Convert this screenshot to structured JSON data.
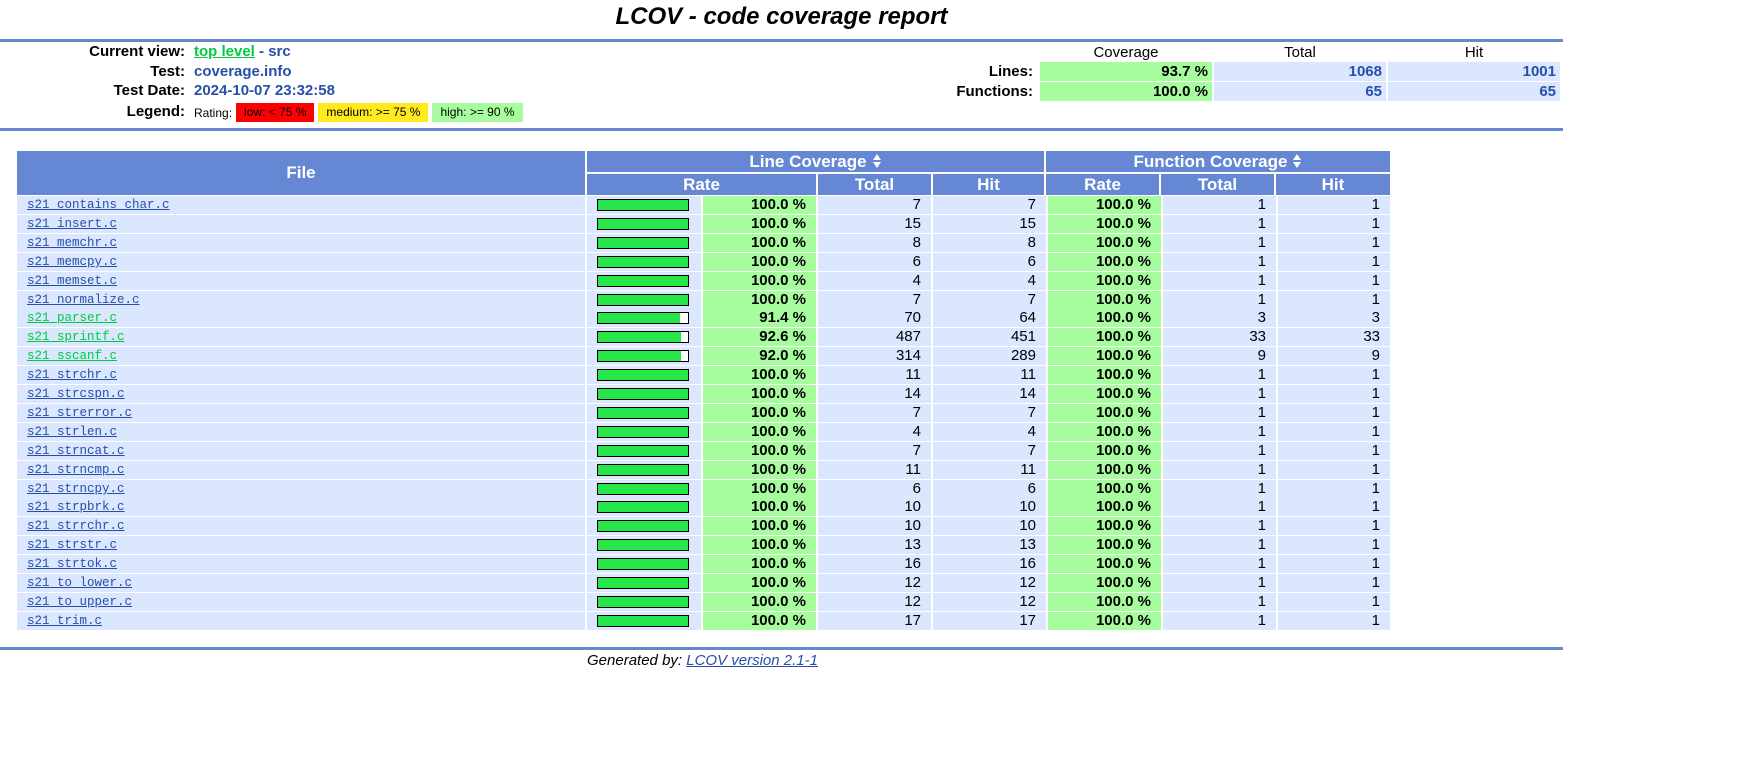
{
  "title": "LCOV - code coverage report",
  "header": {
    "current_view_label": "Current view:",
    "current_view_link": "top level",
    "current_view_sep": " - ",
    "current_view_dir": "src",
    "test_label": "Test:",
    "test_value": "coverage.info",
    "test_date_label": "Test Date:",
    "test_date_value": "2024-10-07 23:32:58",
    "legend_label": "Legend:",
    "legend_rating": "Rating:",
    "legend_low": "low: < 75 %",
    "legend_medium": "medium: >= 75 %",
    "legend_high": "high: >= 90 %"
  },
  "summary": {
    "col_coverage": "Coverage",
    "col_total": "Total",
    "col_hit": "Hit",
    "lines_label": "Lines:",
    "lines_coverage": "93.7 %",
    "lines_total": "1068",
    "lines_hit": "1001",
    "functions_label": "Functions:",
    "functions_coverage": "100.0 %",
    "functions_total": "65",
    "functions_hit": "65"
  },
  "table": {
    "col_file": "File",
    "col_line_coverage": "Line Coverage",
    "col_function_coverage": "Function Coverage",
    "col_rate": "Rate",
    "col_total": "Total",
    "col_hit": "Hit",
    "rows": [
      {
        "file": "s21_contains_char.c",
        "line_rate": "100.0 %",
        "line_pct": 100,
        "line_total": "7",
        "line_hit": "7",
        "func_rate": "100.0 %",
        "func_total": "1",
        "func_hit": "1",
        "highlight": false
      },
      {
        "file": "s21_insert.c",
        "line_rate": "100.0 %",
        "line_pct": 100,
        "line_total": "15",
        "line_hit": "15",
        "func_rate": "100.0 %",
        "func_total": "1",
        "func_hit": "1",
        "highlight": false
      },
      {
        "file": "s21_memchr.c",
        "line_rate": "100.0 %",
        "line_pct": 100,
        "line_total": "8",
        "line_hit": "8",
        "func_rate": "100.0 %",
        "func_total": "1",
        "func_hit": "1",
        "highlight": false
      },
      {
        "file": "s21_memcpy.c",
        "line_rate": "100.0 %",
        "line_pct": 100,
        "line_total": "6",
        "line_hit": "6",
        "func_rate": "100.0 %",
        "func_total": "1",
        "func_hit": "1",
        "highlight": false
      },
      {
        "file": "s21_memset.c",
        "line_rate": "100.0 %",
        "line_pct": 100,
        "line_total": "4",
        "line_hit": "4",
        "func_rate": "100.0 %",
        "func_total": "1",
        "func_hit": "1",
        "highlight": false
      },
      {
        "file": "s21_normalize.c",
        "line_rate": "100.0 %",
        "line_pct": 100,
        "line_total": "7",
        "line_hit": "7",
        "func_rate": "100.0 %",
        "func_total": "1",
        "func_hit": "1",
        "highlight": false
      },
      {
        "file": "s21_parser.c",
        "line_rate": "91.4 %",
        "line_pct": 91.4,
        "line_total": "70",
        "line_hit": "64",
        "func_rate": "100.0 %",
        "func_total": "3",
        "func_hit": "3",
        "highlight": true
      },
      {
        "file": "s21_sprintf.c",
        "line_rate": "92.6 %",
        "line_pct": 92.6,
        "line_total": "487",
        "line_hit": "451",
        "func_rate": "100.0 %",
        "func_total": "33",
        "func_hit": "33",
        "highlight": true
      },
      {
        "file": "s21_sscanf.c",
        "line_rate": "92.0 %",
        "line_pct": 92.0,
        "line_total": "314",
        "line_hit": "289",
        "func_rate": "100.0 %",
        "func_total": "9",
        "func_hit": "9",
        "highlight": true
      },
      {
        "file": "s21_strchr.c",
        "line_rate": "100.0 %",
        "line_pct": 100,
        "line_total": "11",
        "line_hit": "11",
        "func_rate": "100.0 %",
        "func_total": "1",
        "func_hit": "1",
        "highlight": false
      },
      {
        "file": "s21_strcspn.c",
        "line_rate": "100.0 %",
        "line_pct": 100,
        "line_total": "14",
        "line_hit": "14",
        "func_rate": "100.0 %",
        "func_total": "1",
        "func_hit": "1",
        "highlight": false
      },
      {
        "file": "s21_strerror.c",
        "line_rate": "100.0 %",
        "line_pct": 100,
        "line_total": "7",
        "line_hit": "7",
        "func_rate": "100.0 %",
        "func_total": "1",
        "func_hit": "1",
        "highlight": false
      },
      {
        "file": "s21_strlen.c",
        "line_rate": "100.0 %",
        "line_pct": 100,
        "line_total": "4",
        "line_hit": "4",
        "func_rate": "100.0 %",
        "func_total": "1",
        "func_hit": "1",
        "highlight": false
      },
      {
        "file": "s21_strncat.c",
        "line_rate": "100.0 %",
        "line_pct": 100,
        "line_total": "7",
        "line_hit": "7",
        "func_rate": "100.0 %",
        "func_total": "1",
        "func_hit": "1",
        "highlight": false
      },
      {
        "file": "s21_strncmp.c",
        "line_rate": "100.0 %",
        "line_pct": 100,
        "line_total": "11",
        "line_hit": "11",
        "func_rate": "100.0 %",
        "func_total": "1",
        "func_hit": "1",
        "highlight": false
      },
      {
        "file": "s21_strncpy.c",
        "line_rate": "100.0 %",
        "line_pct": 100,
        "line_total": "6",
        "line_hit": "6",
        "func_rate": "100.0 %",
        "func_total": "1",
        "func_hit": "1",
        "highlight": false
      },
      {
        "file": "s21_strpbrk.c",
        "line_rate": "100.0 %",
        "line_pct": 100,
        "line_total": "10",
        "line_hit": "10",
        "func_rate": "100.0 %",
        "func_total": "1",
        "func_hit": "1",
        "highlight": false
      },
      {
        "file": "s21_strrchr.c",
        "line_rate": "100.0 %",
        "line_pct": 100,
        "line_total": "10",
        "line_hit": "10",
        "func_rate": "100.0 %",
        "func_total": "1",
        "func_hit": "1",
        "highlight": false
      },
      {
        "file": "s21_strstr.c",
        "line_rate": "100.0 %",
        "line_pct": 100,
        "line_total": "13",
        "line_hit": "13",
        "func_rate": "100.0 %",
        "func_total": "1",
        "func_hit": "1",
        "highlight": false
      },
      {
        "file": "s21_strtok.c",
        "line_rate": "100.0 %",
        "line_pct": 100,
        "line_total": "16",
        "line_hit": "16",
        "func_rate": "100.0 %",
        "func_total": "1",
        "func_hit": "1",
        "highlight": false
      },
      {
        "file": "s21_to_lower.c",
        "line_rate": "100.0 %",
        "line_pct": 100,
        "line_total": "12",
        "line_hit": "12",
        "func_rate": "100.0 %",
        "func_total": "1",
        "func_hit": "1",
        "highlight": false
      },
      {
        "file": "s21_to_upper.c",
        "line_rate": "100.0 %",
        "line_pct": 100,
        "line_total": "12",
        "line_hit": "12",
        "func_rate": "100.0 %",
        "func_total": "1",
        "func_hit": "1",
        "highlight": false
      },
      {
        "file": "s21_trim.c",
        "line_rate": "100.0 %",
        "line_pct": 100,
        "line_total": "17",
        "line_hit": "17",
        "func_rate": "100.0 %",
        "func_total": "1",
        "func_hit": "1",
        "highlight": false
      }
    ]
  },
  "footer": {
    "generated_by": "Generated by: ",
    "lcov_link": "LCOV version 2.1-1"
  },
  "colors": {
    "header_blue": "#6688d4",
    "cell_blue": "#dae7fe",
    "high_green": "#a7fc9d",
    "medium_yellow": "#ffea20",
    "low_red": "#ff0000",
    "bar_green": "#26e64a",
    "link_blue": "#284fa8",
    "link_green": "#00cb40"
  }
}
